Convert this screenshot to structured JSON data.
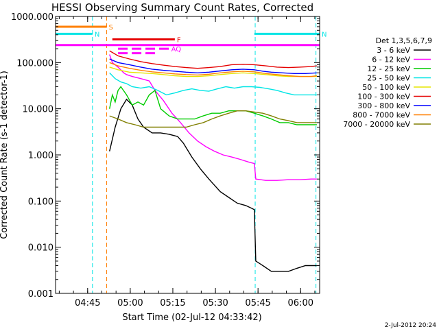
{
  "chart_data": {
    "type": "line",
    "title": "HESSI Observing Summary Count Rates, Corrected",
    "xlabel": "Start Time (02-Jul-12 04:33:42)",
    "ylabel": "Corrected Count Rate (s-1 detector-1)",
    "yscale": "log",
    "ylim": [
      0.001,
      1000
    ],
    "xlim_minutes_after_0433": [
      0,
      93
    ],
    "y_ticks": [
      "1000.000",
      "100.000",
      "10.000",
      "1.000",
      "0.100",
      "0.010",
      "0.001"
    ],
    "x_ticks": [
      "04:45",
      "05:00",
      "05:15",
      "05:30",
      "05:45",
      "06:00"
    ],
    "legend_title": "Det 1,3,5,6,7,9",
    "series": [
      {
        "name": "3 - 6 keV",
        "color": "#000000",
        "points": [
          [
            19,
            1.2
          ],
          [
            21,
            4
          ],
          [
            23,
            10
          ],
          [
            25,
            16
          ],
          [
            27,
            12
          ],
          [
            29,
            6
          ],
          [
            31,
            4
          ],
          [
            34,
            3
          ],
          [
            37,
            3
          ],
          [
            40,
            2.8
          ],
          [
            43,
            2.5
          ],
          [
            45,
            1.8
          ],
          [
            48,
            0.9
          ],
          [
            51,
            0.5
          ],
          [
            54,
            0.3
          ],
          [
            58,
            0.16
          ],
          [
            61,
            0.12
          ],
          [
            64,
            0.09
          ],
          [
            67,
            0.08
          ],
          [
            69,
            0.07
          ],
          [
            70,
            0.065
          ],
          [
            70.5,
            0.005
          ],
          [
            73,
            0.004
          ],
          [
            76,
            0.003
          ],
          [
            79,
            0.003
          ],
          [
            82,
            0.003
          ],
          [
            85,
            0.0035
          ],
          [
            88,
            0.004
          ],
          [
            90,
            0.004
          ],
          [
            92,
            0.004
          ]
        ]
      },
      {
        "name": "6 - 12 keV",
        "color": "#ff00ff",
        "points": [
          [
            19,
            150
          ],
          [
            20,
            100
          ],
          [
            22,
            80
          ],
          [
            24,
            60
          ],
          [
            25,
            55
          ],
          [
            27,
            50
          ],
          [
            30,
            45
          ],
          [
            33,
            40
          ],
          [
            35,
            25
          ],
          [
            38,
            15
          ],
          [
            41,
            8
          ],
          [
            44,
            5
          ],
          [
            47,
            3
          ],
          [
            50,
            2
          ],
          [
            53,
            1.5
          ],
          [
            56,
            1.2
          ],
          [
            59,
            1
          ],
          [
            62,
            0.9
          ],
          [
            65,
            0.8
          ],
          [
            68,
            0.7
          ],
          [
            70,
            0.65
          ],
          [
            70.5,
            0.3
          ],
          [
            74,
            0.28
          ],
          [
            78,
            0.28
          ],
          [
            82,
            0.29
          ],
          [
            86,
            0.29
          ],
          [
            90,
            0.3
          ],
          [
            92,
            0.3
          ]
        ]
      },
      {
        "name": "12 - 25 keV",
        "color": "#00cc00",
        "points": [
          [
            19,
            10
          ],
          [
            20,
            20
          ],
          [
            21,
            14
          ],
          [
            22,
            25
          ],
          [
            23,
            30
          ],
          [
            25,
            20
          ],
          [
            27,
            12
          ],
          [
            29,
            14
          ],
          [
            31,
            12
          ],
          [
            33,
            20
          ],
          [
            35,
            25
          ],
          [
            37,
            10
          ],
          [
            40,
            7
          ],
          [
            43,
            6
          ],
          [
            46,
            6
          ],
          [
            49,
            6
          ],
          [
            52,
            7
          ],
          [
            55,
            8
          ],
          [
            58,
            8
          ],
          [
            61,
            9
          ],
          [
            64,
            9
          ],
          [
            67,
            9
          ],
          [
            70,
            8
          ],
          [
            73,
            7
          ],
          [
            76,
            6
          ],
          [
            79,
            5
          ],
          [
            82,
            5
          ],
          [
            85,
            4.5
          ],
          [
            88,
            4.5
          ],
          [
            92,
            4.5
          ]
        ]
      },
      {
        "name": "25 - 50 keV",
        "color": "#00e5e5",
        "points": [
          [
            19,
            60
          ],
          [
            21,
            45
          ],
          [
            23,
            38
          ],
          [
            25,
            35
          ],
          [
            27,
            30
          ],
          [
            30,
            28
          ],
          [
            33,
            30
          ],
          [
            36,
            25
          ],
          [
            39,
            20
          ],
          [
            42,
            22
          ],
          [
            45,
            25
          ],
          [
            48,
            27
          ],
          [
            51,
            25
          ],
          [
            54,
            24
          ],
          [
            57,
            27
          ],
          [
            60,
            30
          ],
          [
            63,
            28
          ],
          [
            66,
            30
          ],
          [
            69,
            30
          ],
          [
            72,
            29
          ],
          [
            75,
            27
          ],
          [
            78,
            25
          ],
          [
            81,
            22
          ],
          [
            84,
            20
          ],
          [
            87,
            20
          ],
          [
            90,
            20
          ],
          [
            92,
            20
          ]
        ]
      },
      {
        "name": "50 - 100 keV",
        "color": "#e5e500",
        "points": [
          [
            19,
            80
          ],
          [
            22,
            70
          ],
          [
            26,
            62
          ],
          [
            30,
            60
          ],
          [
            34,
            58
          ],
          [
            38,
            55
          ],
          [
            42,
            52
          ],
          [
            46,
            50
          ],
          [
            50,
            50
          ],
          [
            54,
            52
          ],
          [
            58,
            55
          ],
          [
            62,
            58
          ],
          [
            66,
            60
          ],
          [
            70,
            58
          ],
          [
            74,
            55
          ],
          [
            78,
            52
          ],
          [
            82,
            50
          ],
          [
            86,
            50
          ],
          [
            90,
            50
          ],
          [
            92,
            50
          ]
        ]
      },
      {
        "name": "100 - 300 keV",
        "color": "#e50000",
        "points": [
          [
            19,
            180
          ],
          [
            22,
            140
          ],
          [
            26,
            120
          ],
          [
            30,
            105
          ],
          [
            34,
            95
          ],
          [
            38,
            88
          ],
          [
            42,
            82
          ],
          [
            46,
            78
          ],
          [
            50,
            75
          ],
          [
            54,
            78
          ],
          [
            58,
            82
          ],
          [
            62,
            90
          ],
          [
            66,
            92
          ],
          [
            70,
            90
          ],
          [
            74,
            85
          ],
          [
            78,
            80
          ],
          [
            82,
            78
          ],
          [
            86,
            80
          ],
          [
            90,
            82
          ],
          [
            92,
            85
          ]
        ]
      },
      {
        "name": "300 - 800 keV",
        "color": "#0000ff",
        "points": [
          [
            19,
            120
          ],
          [
            22,
            100
          ],
          [
            26,
            90
          ],
          [
            30,
            80
          ],
          [
            34,
            72
          ],
          [
            38,
            68
          ],
          [
            42,
            65
          ],
          [
            46,
            62
          ],
          [
            50,
            60
          ],
          [
            54,
            62
          ],
          [
            58,
            66
          ],
          [
            62,
            70
          ],
          [
            66,
            72
          ],
          [
            70,
            70
          ],
          [
            73,
            65
          ],
          [
            76,
            62
          ],
          [
            80,
            60
          ],
          [
            84,
            58
          ],
          [
            88,
            58
          ],
          [
            92,
            60
          ]
        ]
      },
      {
        "name": "800 - 7000 keV",
        "color": "#ff7f00",
        "points": [
          [
            19,
            100
          ],
          [
            22,
            85
          ],
          [
            26,
            75
          ],
          [
            30,
            68
          ],
          [
            34,
            63
          ],
          [
            38,
            60
          ],
          [
            42,
            57
          ],
          [
            46,
            55
          ],
          [
            50,
            54
          ],
          [
            54,
            56
          ],
          [
            58,
            60
          ],
          [
            62,
            63
          ],
          [
            66,
            65
          ],
          [
            70,
            63
          ],
          [
            74,
            58
          ],
          [
            78,
            55
          ],
          [
            82,
            52
          ],
          [
            86,
            50
          ],
          [
            90,
            50
          ],
          [
            92,
            52
          ]
        ]
      },
      {
        "name": "7000 - 20000 keV",
        "color": "#807f00",
        "points": [
          [
            19,
            7
          ],
          [
            22,
            6
          ],
          [
            25,
            5
          ],
          [
            28,
            4.5
          ],
          [
            31,
            4
          ],
          [
            34,
            4
          ],
          [
            37,
            4
          ],
          [
            40,
            4
          ],
          [
            43,
            4
          ],
          [
            46,
            4
          ],
          [
            49,
            4.5
          ],
          [
            52,
            5
          ],
          [
            55,
            6
          ],
          [
            58,
            7
          ],
          [
            61,
            8
          ],
          [
            64,
            9
          ],
          [
            67,
            9
          ],
          [
            70,
            8.5
          ],
          [
            73,
            8
          ],
          [
            76,
            7
          ],
          [
            79,
            6
          ],
          [
            82,
            5.5
          ],
          [
            85,
            5
          ],
          [
            88,
            5
          ],
          [
            91,
            5
          ],
          [
            92,
            5
          ]
        ]
      }
    ],
    "grid": false,
    "legend_position": "right"
  },
  "overlays": {
    "flag_bars": [
      {
        "label": "S",
        "color": "#ff7f00",
        "x_start_min": 0,
        "x_end_min": 18,
        "y_value": 600
      },
      {
        "label": "N",
        "color": "#00e5e5",
        "x_start_min": 0,
        "x_end_min": 13,
        "y_value": 420
      },
      {
        "label": "N",
        "color": "#00e5e5",
        "x_start_min": 70,
        "x_end_min": 93,
        "y_value": 420
      },
      {
        "label": "",
        "color": "#ff00ff",
        "x_start_min": 0,
        "x_end_min": 93,
        "y_value": 240
      },
      {
        "label": "F",
        "color": "#e50000",
        "x_start_min": 20,
        "x_end_min": 42,
        "y_value": 320
      },
      {
        "label": "AQ",
        "color": "#ff00ff",
        "x_start_min": 22,
        "x_end_min": 40,
        "y_value": 200,
        "dashed": true
      },
      {
        "label": "",
        "color": "#ff00ff",
        "x_start_min": 22,
        "x_end_min": 35,
        "y_value": 160,
        "dashed": true
      }
    ],
    "vertical_lines": [
      {
        "x_min": 13,
        "color": "#00e5e5"
      },
      {
        "x_min": 18,
        "color": "#ff7f00"
      },
      {
        "x_min": 70.3,
        "color": "#00e5e5"
      },
      {
        "x_min": 91.7,
        "color": "#00e5e5"
      }
    ]
  },
  "footer": {
    "timestamp": "2-Jul-2012 20:24"
  }
}
